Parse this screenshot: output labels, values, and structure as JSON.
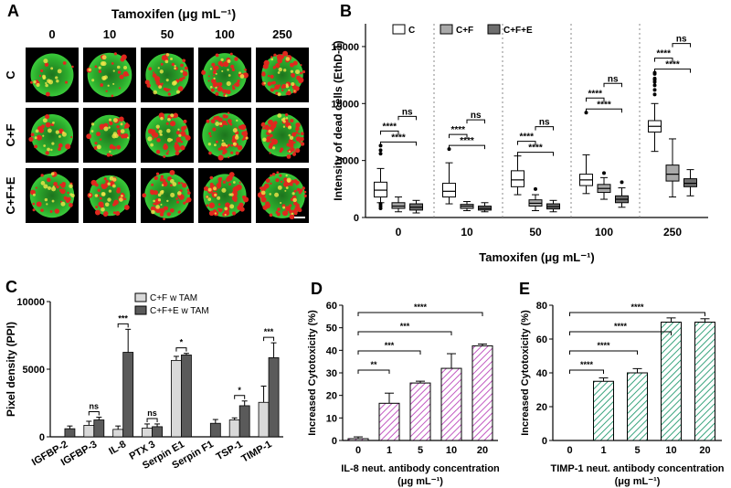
{
  "panel_A": {
    "letter": "A",
    "title": "Tamoxifen (μg mL⁻¹)",
    "columns": [
      "0",
      "10",
      "50",
      "100",
      "250"
    ],
    "rows": [
      "C",
      "C+F",
      "C+F+E"
    ],
    "colors": {
      "live": "#3dd63d",
      "dead": "#e0281e",
      "background": "#000000"
    }
  },
  "chart_data": [
    {
      "panel": "B",
      "type": "box",
      "ylabel": "Intensity of dead cells (EthD-1)",
      "xlabel": "Tamoxifen (μg mL⁻¹)",
      "ylim": [
        0,
        17000
      ],
      "yticks": [
        0,
        5000,
        10000,
        15000
      ],
      "categories": [
        "0",
        "10",
        "50",
        "100",
        "250"
      ],
      "legend": [
        "C",
        "C+F",
        "C+F+E"
      ],
      "series_colors": [
        "#ffffff",
        "#a9a9a9",
        "#6e6e6e"
      ],
      "boxes": [
        [
          {
            "min": 1300,
            "q1": 1800,
            "med": 2400,
            "q3": 3100,
            "max": 4300,
            "out": [
              6300,
              5900,
              5600,
              1000,
              800,
              1200
            ]
          },
          {
            "min": 500,
            "q1": 800,
            "med": 1000,
            "q3": 1300,
            "max": 1800,
            "out": []
          },
          {
            "min": 400,
            "q1": 650,
            "med": 900,
            "q3": 1200,
            "max": 1500,
            "out": []
          }
        ],
        [
          {
            "min": 1200,
            "q1": 1800,
            "med": 2300,
            "q3": 3000,
            "max": 4800,
            "out": [
              6000
            ]
          },
          {
            "min": 600,
            "q1": 800,
            "med": 1000,
            "q3": 1150,
            "max": 1400,
            "out": []
          },
          {
            "min": 500,
            "q1": 650,
            "med": 800,
            "q3": 1000,
            "max": 1300,
            "out": []
          }
        ],
        [
          {
            "min": 2000,
            "q1": 2700,
            "med": 3300,
            "q3": 4100,
            "max": 5400,
            "out": []
          },
          {
            "min": 600,
            "q1": 1000,
            "med": 1250,
            "q3": 1550,
            "max": 2000,
            "out": [
              2500
            ]
          },
          {
            "min": 500,
            "q1": 750,
            "med": 950,
            "q3": 1200,
            "max": 1500,
            "out": []
          }
        ],
        [
          {
            "min": 2100,
            "q1": 2800,
            "med": 3300,
            "q3": 3800,
            "max": 5500,
            "out": [
              9200
            ]
          },
          {
            "min": 1600,
            "q1": 2200,
            "med": 2550,
            "q3": 2900,
            "max": 3500,
            "out": [
              3900
            ]
          },
          {
            "min": 900,
            "q1": 1300,
            "med": 1600,
            "q3": 1900,
            "max": 2600,
            "out": [
              3100
            ]
          }
        ],
        [
          {
            "min": 5800,
            "q1": 7500,
            "med": 8000,
            "q3": 8500,
            "max": 10000,
            "out": [
              10800,
              11200,
              11600,
              11900,
              12200,
              12600,
              12700,
              12100
            ]
          },
          {
            "min": 1800,
            "q1": 3200,
            "med": 3800,
            "q3": 4600,
            "max": 6900,
            "out": []
          },
          {
            "min": 1900,
            "q1": 2700,
            "med": 3000,
            "q3": 3400,
            "max": 4200,
            "out": []
          }
        ]
      ],
      "significance": [
        "****",
        "****",
        "ns"
      ]
    },
    {
      "panel": "C",
      "type": "bar",
      "ylabel": "Pixel density (PPI)",
      "ylim": [
        0,
        10000
      ],
      "yticks": [
        0,
        5000,
        10000
      ],
      "categories": [
        "IGFBP-2",
        "IGFBP-3",
        "IL-8",
        "PTX 3",
        "Serpin E1",
        "Serpin F1",
        "TSP-1",
        "TIMP-1"
      ],
      "series": [
        {
          "name": "C+F w TAM",
          "color": "#d9d9d9",
          "values": [
            0,
            850,
            550,
            650,
            5650,
            0,
            1250,
            2550
          ],
          "err": [
            0,
            300,
            250,
            300,
            300,
            0,
            150,
            1200
          ]
        },
        {
          "name": "C+F+E w TAM",
          "color": "#5a5a5a",
          "values": [
            600,
            1250,
            6250,
            750,
            6050,
            1000,
            2300,
            5850
          ],
          "err": [
            200,
            200,
            1700,
            200,
            120,
            280,
            350,
            1100
          ]
        }
      ],
      "significance": [
        {
          "cat": 1,
          "label": "ns"
        },
        {
          "cat": 2,
          "label": "***"
        },
        {
          "cat": 3,
          "label": "ns"
        },
        {
          "cat": 4,
          "label": "*"
        },
        {
          "cat": 6,
          "label": "*"
        },
        {
          "cat": 7,
          "label": "***"
        }
      ]
    },
    {
      "panel": "D",
      "type": "bar",
      "ylabel": "Increased Cytotoxicity (%)",
      "xlabel_line1": "IL-8 neut. antibody concentration",
      "xlabel_line2": "(μg mL⁻¹)",
      "ylim": [
        0,
        60
      ],
      "yticks": [
        0,
        10,
        20,
        30,
        40,
        50,
        60
      ],
      "categories": [
        "0",
        "1",
        "5",
        "10",
        "20"
      ],
      "values": [
        0.8,
        16.5,
        25.5,
        32,
        42
      ],
      "err": [
        0.8,
        4.5,
        0.8,
        6.5,
        0.8
      ],
      "color": "#d57bd5",
      "significance": [
        "**",
        "***",
        "***",
        "****"
      ]
    },
    {
      "panel": "E",
      "type": "bar",
      "ylabel": "Increased Cytotoxicity (%)",
      "xlabel_line1": "TIMP-1 neut. antibody concentration",
      "xlabel_line2": "(μg mL⁻¹)",
      "ylim": [
        0,
        80
      ],
      "yticks": [
        0,
        20,
        40,
        60,
        80
      ],
      "categories": [
        "0",
        "1",
        "5",
        "10",
        "20"
      ],
      "values": [
        0,
        35,
        40,
        70,
        70
      ],
      "err": [
        0,
        2,
        2.5,
        2.5,
        2
      ],
      "color": "#4dbb96",
      "significance": [
        "****",
        "****",
        "****",
        "****"
      ]
    }
  ]
}
